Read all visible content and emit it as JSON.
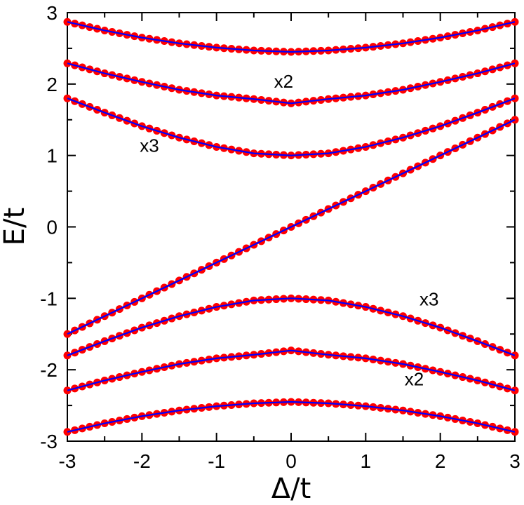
{
  "chart_data": {
    "type": "line",
    "xlabel": "Δ/t",
    "ylabel": "E/t",
    "xlim": [
      -3,
      3
    ],
    "ylim": [
      -3,
      3
    ],
    "x_ticks": [
      "-3",
      "-2",
      "-1",
      "0",
      "1",
      "2",
      "3"
    ],
    "y_ticks": [
      "3",
      "2",
      "1",
      "0",
      "-1",
      "-2",
      "-3"
    ],
    "grid": false,
    "x": [
      -3.0,
      -2.5,
      -2.0,
      -1.5,
      -1.0,
      -0.5,
      0.0,
      0.5,
      1.0,
      1.5,
      2.0,
      2.5,
      3.0
    ],
    "series": [
      {
        "values": [
          2.87,
          2.75,
          2.65,
          2.57,
          2.51,
          2.47,
          2.45,
          2.47,
          2.51,
          2.57,
          2.65,
          2.75,
          2.87
        ],
        "marker_color": "#ff0000",
        "line_color": "#0000ff"
      },
      {
        "values": [
          2.29,
          2.15,
          2.03,
          1.92,
          1.84,
          1.79,
          1.73,
          1.79,
          1.84,
          1.92,
          2.03,
          2.15,
          2.29
        ],
        "marker_color": "#ff0000",
        "line_color": "#0000ff"
      },
      {
        "values": [
          1.8,
          1.6,
          1.41,
          1.25,
          1.12,
          1.03,
          1.0,
          1.03,
          1.12,
          1.25,
          1.41,
          1.6,
          1.8
        ],
        "marker_color": "#ff0000",
        "line_color": "#0000ff"
      },
      {
        "values": [
          -1.5,
          -1.25,
          -1.0,
          -0.75,
          -0.5,
          -0.25,
          0.0,
          0.25,
          0.5,
          0.75,
          1.0,
          1.25,
          1.5
        ],
        "marker_color": "#ff0000",
        "line_color": "#0000ff"
      },
      {
        "values": [
          -1.8,
          -1.6,
          -1.41,
          -1.25,
          -1.12,
          -1.03,
          -1.0,
          -1.03,
          -1.12,
          -1.25,
          -1.41,
          -1.6,
          -1.8
        ],
        "marker_color": "#ff0000",
        "line_color": "#0000ff"
      },
      {
        "values": [
          -2.29,
          -2.15,
          -2.03,
          -1.92,
          -1.84,
          -1.79,
          -1.73,
          -1.79,
          -1.84,
          -1.92,
          -2.03,
          -2.15,
          -2.29
        ],
        "marker_color": "#ff0000",
        "line_color": "#0000ff"
      },
      {
        "values": [
          -2.87,
          -2.75,
          -2.65,
          -2.57,
          -2.51,
          -2.47,
          -2.45,
          -2.47,
          -2.51,
          -2.57,
          -2.65,
          -2.75,
          -2.87
        ],
        "marker_color": "#ff0000",
        "line_color": "#0000ff"
      }
    ],
    "annotations": [
      {
        "text": "x2",
        "x": -0.1,
        "y": 1.95
      },
      {
        "text": "x3",
        "x": -1.9,
        "y": 1.05
      },
      {
        "text": "x3",
        "x": 1.85,
        "y": -1.1
      },
      {
        "text": "x2",
        "x": 1.65,
        "y": -2.22
      }
    ]
  }
}
